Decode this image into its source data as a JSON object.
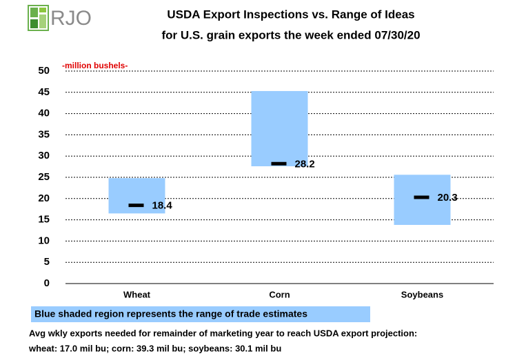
{
  "logo": "RJO",
  "chart_data": {
    "type": "range",
    "title": "USDA Export Inspections vs. Range of Ideas",
    "subtitle": "for U.S. grain exports the week ended 07/30/20",
    "y_label": "-million bushels-",
    "categories": [
      "Wheat",
      "Corn",
      "Soybeans"
    ],
    "ranges": {
      "name": "Blue shaded region represents the range of trade estimates",
      "color": "#99ccff",
      "low": [
        16.5,
        27.6,
        13.8
      ],
      "high": [
        24.8,
        45.3,
        25.6
      ]
    },
    "values": [
      18.4,
      28.2,
      20.3
    ],
    "marker_color": "#000000",
    "ylim": [
      0,
      50
    ],
    "yticks": [
      0,
      5,
      10,
      15,
      20,
      25,
      30,
      35,
      40,
      45,
      50
    ],
    "grid": true,
    "notes": [
      "Avg wkly exports needed for remainder of marketing year to reach USDA export projection:",
      "wheat: 17.0 mil bu; corn: 39.3 mil bu; soybeans: 30.1 mil bu"
    ]
  }
}
